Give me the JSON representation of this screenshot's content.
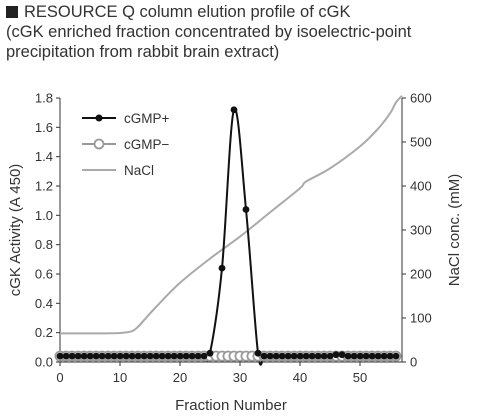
{
  "header": {
    "line1": "RESOURCE Q column elution profile of cGK",
    "line2": "(cGK enriched fraction concentrated by isoelectric-point",
    "line3": "precipitation from rabbit brain extract)"
  },
  "colors": {
    "cgmp_plus": "#111111",
    "cgmp_minus": "#999999",
    "nacl": "#aaaaaa",
    "axis": "#333333"
  },
  "chart_data": {
    "type": "line",
    "title": "RESOURCE Q column elution profile of cGK (cGK enriched fraction concentrated by isoelectric-point precipitation from rabbit brain extract)",
    "xlabel": "Fraction Number",
    "ylabel": "cGK Activity (A 450)",
    "y2label": "NaCl conc. (mM)",
    "xlim": [
      0,
      57
    ],
    "ylim": [
      0,
      1.8
    ],
    "y2lim": [
      0,
      600
    ],
    "xticks": [
      0,
      10,
      20,
      30,
      40,
      50
    ],
    "yticks": [
      0.0,
      0.2,
      0.4,
      0.6,
      0.8,
      1.0,
      1.2,
      1.4,
      1.6,
      1.8
    ],
    "yticklabels": [
      "0.0",
      "0.2",
      "0.4",
      "0.6",
      "0.8",
      "1.0",
      "1.2",
      "1.4",
      "1.6",
      "1.8"
    ],
    "y2ticks": [
      0,
      100,
      200,
      300,
      400,
      500,
      600
    ],
    "legend_position": "top-left",
    "grid": false,
    "series": [
      {
        "name": "cGMP+",
        "axis": "left",
        "marker": "filled-circle",
        "x": [
          0,
          1,
          2,
          3,
          4,
          5,
          6,
          7,
          8,
          9,
          10,
          11,
          12,
          13,
          14,
          15,
          16,
          17,
          18,
          19,
          20,
          21,
          22,
          23,
          24,
          25,
          27,
          29,
          31,
          33,
          34,
          35,
          36,
          37,
          38,
          39,
          40,
          41,
          42,
          43,
          44,
          45,
          46,
          47,
          48,
          49,
          50,
          51,
          52,
          53,
          54,
          55,
          56
        ],
        "y": [
          0.04,
          0.04,
          0.04,
          0.04,
          0.04,
          0.04,
          0.04,
          0.04,
          0.04,
          0.04,
          0.04,
          0.04,
          0.04,
          0.04,
          0.04,
          0.04,
          0.04,
          0.04,
          0.04,
          0.04,
          0.04,
          0.04,
          0.04,
          0.04,
          0.04,
          0.06,
          0.64,
          1.72,
          1.04,
          0.06,
          0.04,
          0.04,
          0.04,
          0.04,
          0.04,
          0.04,
          0.04,
          0.04,
          0.04,
          0.04,
          0.04,
          0.04,
          0.05,
          0.05,
          0.04,
          0.04,
          0.04,
          0.04,
          0.04,
          0.04,
          0.04,
          0.04,
          0.04
        ]
      },
      {
        "name": "cGMP−",
        "axis": "left",
        "marker": "open-circle",
        "x": [
          0,
          1,
          2,
          3,
          4,
          5,
          6,
          7,
          8,
          9,
          10,
          11,
          12,
          13,
          14,
          15,
          16,
          17,
          18,
          19,
          20,
          21,
          22,
          23,
          24,
          25,
          26,
          27,
          28,
          29,
          30,
          31,
          32,
          33,
          34,
          35,
          36,
          37,
          38,
          39,
          40,
          41,
          42,
          43,
          44,
          45,
          46,
          47,
          48,
          49,
          50,
          51,
          52,
          53,
          54,
          55,
          56
        ],
        "y": [
          0.04,
          0.04,
          0.04,
          0.04,
          0.04,
          0.04,
          0.04,
          0.04,
          0.04,
          0.04,
          0.04,
          0.04,
          0.04,
          0.04,
          0.04,
          0.04,
          0.04,
          0.04,
          0.04,
          0.04,
          0.04,
          0.04,
          0.04,
          0.04,
          0.04,
          0.04,
          0.04,
          0.04,
          0.04,
          0.04,
          0.04,
          0.04,
          0.04,
          0.04,
          0.04,
          0.04,
          0.04,
          0.04,
          0.04,
          0.04,
          0.04,
          0.04,
          0.04,
          0.04,
          0.04,
          0.04,
          0.04,
          0.04,
          0.04,
          0.04,
          0.04,
          0.04,
          0.04,
          0.04,
          0.04,
          0.04,
          0.04
        ]
      },
      {
        "name": "NaCl",
        "axis": "right",
        "marker": "none",
        "x": [
          0,
          5,
          10,
          12,
          13,
          14,
          16,
          20,
          25,
          30,
          35,
          40,
          41,
          45,
          50,
          53,
          55,
          56,
          57
        ],
        "y": [
          65,
          65,
          66,
          70,
          80,
          95,
          125,
          180,
          235,
          285,
          340,
          395,
          410,
          440,
          490,
          530,
          565,
          590,
          605
        ]
      }
    ]
  }
}
